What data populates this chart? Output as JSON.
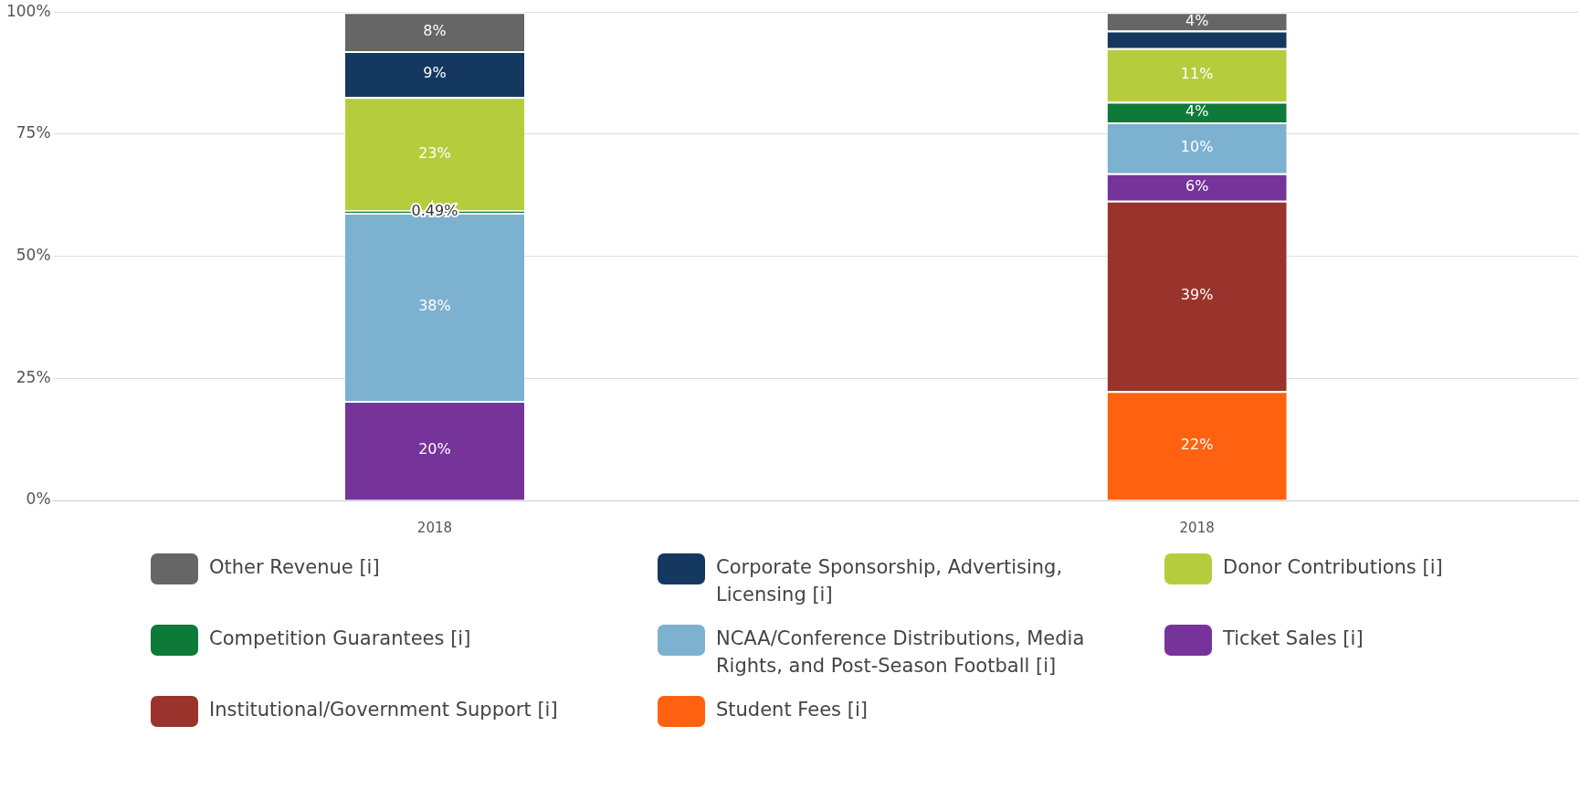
{
  "chart_data": {
    "type": "bar",
    "stacked": true,
    "categories": [
      "2018",
      "2018"
    ],
    "series": [
      {
        "name": "Student Fees [i]",
        "color": "#fe6210",
        "values": [
          null,
          22.4
        ],
        "value_labels": [
          null,
          "22%"
        ]
      },
      {
        "name": "Institutional/Government Support [i]",
        "color": "#9a332c",
        "values": [
          null,
          39.0
        ],
        "value_labels": [
          null,
          "39%"
        ]
      },
      {
        "name": "Ticket Sales [i]",
        "color": "#76339a",
        "values": [
          20.4,
          5.6
        ],
        "value_labels": [
          "20%",
          "6%"
        ]
      },
      {
        "name": "NCAA/Conference Distributions, Media Rights, and Post-Season Football [i]",
        "color": "#7cb1d0",
        "values": [
          38.5,
          10.4
        ],
        "value_labels": [
          "38%",
          "10%"
        ]
      },
      {
        "name": "Competition Guarantees [i]",
        "color": "#0d7a3a",
        "values": [
          0.49,
          4.2
        ],
        "value_labels": [
          "0.49%",
          "4%"
        ]
      },
      {
        "name": "Donor Contributions [i]",
        "color": "#b5cd3c",
        "values": [
          23.2,
          11.0
        ],
        "value_labels": [
          "23%",
          "11%"
        ]
      },
      {
        "name": "Corporate Sponsorship, Advertising, Licensing [i]",
        "color": "#143860",
        "values": [
          9.4,
          3.6
        ],
        "value_labels": [
          "9%",
          null
        ]
      },
      {
        "name": "Other Revenue [i]",
        "color": "#666666",
        "values": [
          8.0,
          3.8
        ],
        "value_labels": [
          "8%",
          "4%"
        ]
      }
    ],
    "ylim": [
      0,
      100
    ],
    "yticks": [
      {
        "value": 0,
        "label": "0%"
      },
      {
        "value": 25,
        "label": "25%"
      },
      {
        "value": 50,
        "label": "50%"
      },
      {
        "value": 75,
        "label": "75%"
      },
      {
        "value": 100,
        "label": "100%"
      }
    ],
    "grid": "y",
    "legend": "bottom"
  }
}
